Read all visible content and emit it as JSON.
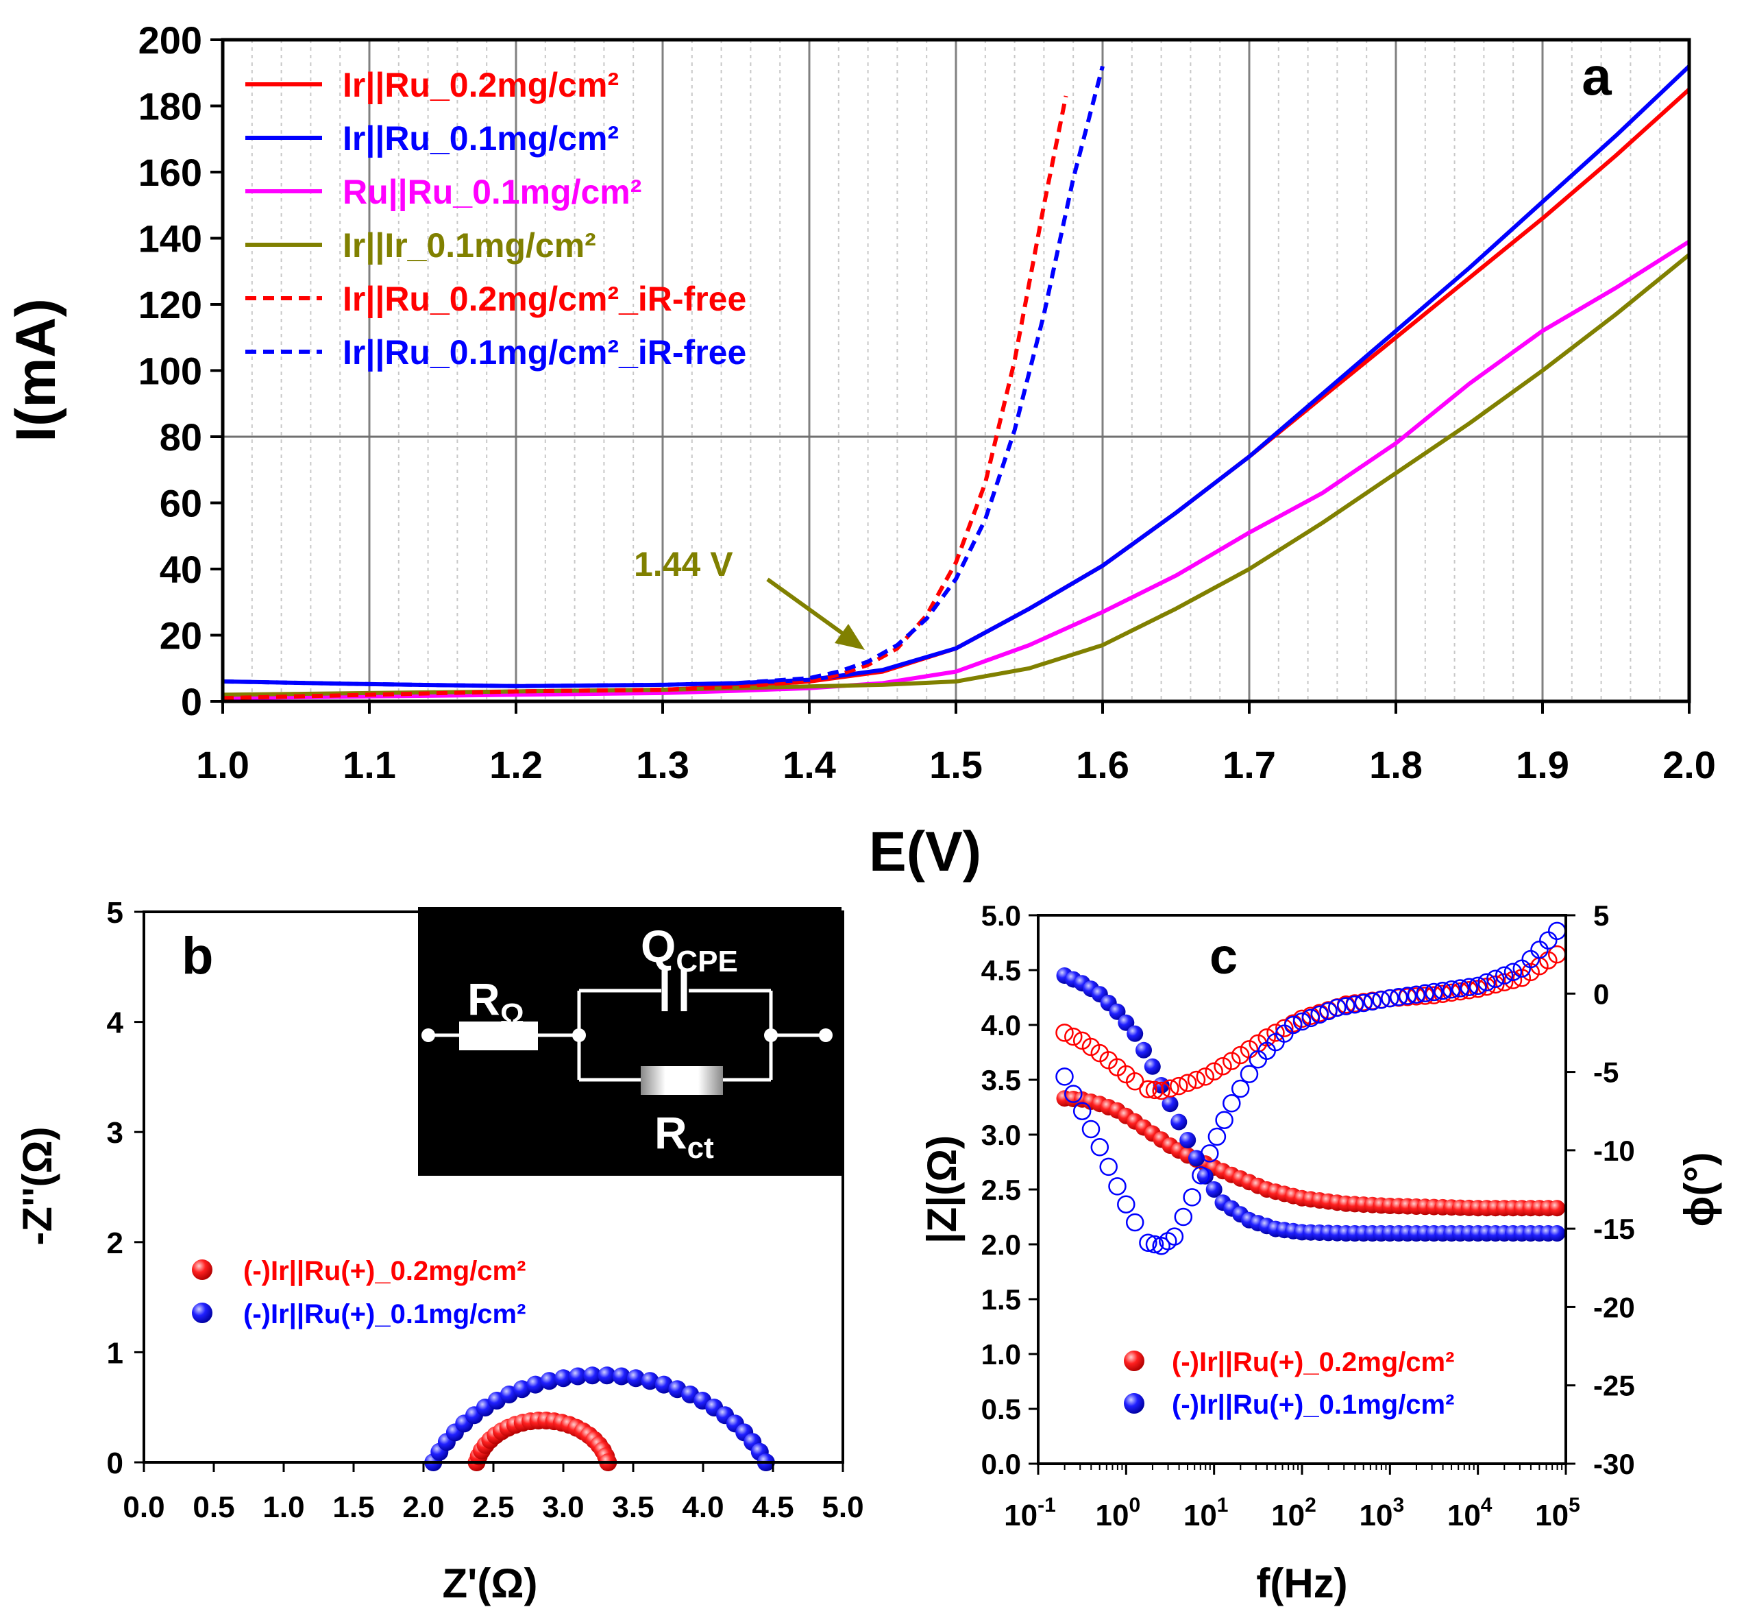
{
  "chart_data": [
    {
      "panel": "a",
      "type": "line",
      "panel_label": "a",
      "xlabel": "E(V)",
      "ylabel": "I(mA)",
      "xlim": [
        1.0,
        2.0
      ],
      "ylim": [
        0,
        200
      ],
      "xticks": [
        "1.0",
        "1.1",
        "1.2",
        "1.3",
        "1.4",
        "1.5",
        "1.6",
        "1.7",
        "1.8",
        "1.9",
        "2.0"
      ],
      "yticks": [
        "0",
        "20",
        "40",
        "60",
        "80",
        "100",
        "120",
        "140",
        "160",
        "180",
        "200"
      ],
      "grid": "vertical major + minor dotted, horizontal line at 80",
      "reference_line_y": 80,
      "legend_position": "top-left",
      "annotation": {
        "text": "1.44 V",
        "x": 1.44,
        "y": 17,
        "color": "#808000"
      },
      "series": [
        {
          "name": "Ir||Ru_0.2mg/cm²",
          "color": "#ff0000",
          "dash": false,
          "x": [
            1.0,
            1.1,
            1.2,
            1.3,
            1.35,
            1.4,
            1.45,
            1.5,
            1.55,
            1.6,
            1.65,
            1.7,
            1.75,
            1.8,
            1.85,
            1.9,
            1.95,
            2.0
          ],
          "y": [
            1,
            2,
            3,
            3.5,
            4.5,
            6,
            9,
            16,
            28,
            41,
            57,
            74,
            92,
            110,
            128,
            146,
            165,
            185
          ]
        },
        {
          "name": "Ir||Ru_0.1mg/cm²",
          "color": "#0000ff",
          "dash": false,
          "x": [
            1.0,
            1.1,
            1.2,
            1.3,
            1.35,
            1.4,
            1.45,
            1.5,
            1.55,
            1.6,
            1.65,
            1.7,
            1.75,
            1.8,
            1.85,
            1.9,
            1.95,
            2.0
          ],
          "y": [
            6,
            5.2,
            4.6,
            5,
            5.5,
            6.5,
            9.5,
            16,
            28,
            41,
            57,
            74,
            93,
            112,
            131,
            151,
            171,
            192
          ]
        },
        {
          "name": "Ru||Ru_0.1mg/cm²",
          "color": "#ff00ff",
          "dash": false,
          "x": [
            1.0,
            1.1,
            1.2,
            1.3,
            1.35,
            1.4,
            1.45,
            1.5,
            1.55,
            1.6,
            1.65,
            1.7,
            1.75,
            1.8,
            1.85,
            1.9,
            1.95,
            2.0
          ],
          "y": [
            1,
            1.5,
            2,
            2.5,
            3.2,
            4,
            5.5,
            9,
            17,
            27,
            38,
            51,
            63,
            78,
            96,
            112,
            125,
            139
          ]
        },
        {
          "name": "Ir||Ir_0.1mg/cm²",
          "color": "#808000",
          "dash": false,
          "x": [
            1.0,
            1.1,
            1.2,
            1.3,
            1.35,
            1.4,
            1.45,
            1.5,
            1.55,
            1.6,
            1.65,
            1.7,
            1.75,
            1.8,
            1.85,
            1.9,
            1.95,
            2.0
          ],
          "y": [
            2,
            2.5,
            3,
            3.5,
            4,
            4.5,
            5,
            6,
            10,
            17,
            28,
            40,
            54,
            69,
            84,
            100,
            117,
            135
          ]
        },
        {
          "name": "Ir||Ru_0.2mg/cm²_iR-free",
          "color": "#ff0000",
          "dash": true,
          "x": [
            1.0,
            1.1,
            1.2,
            1.3,
            1.35,
            1.4,
            1.42,
            1.44,
            1.46,
            1.48,
            1.5,
            1.52,
            1.54,
            1.56,
            1.575
          ],
          "y": [
            1,
            2,
            3,
            3.5,
            4.5,
            6,
            8,
            11,
            16,
            26,
            42,
            66,
            103,
            150,
            183
          ]
        },
        {
          "name": "Ir||Ru_0.1mg/cm²_iR-free",
          "color": "#0000ff",
          "dash": true,
          "x": [
            1.0,
            1.1,
            1.2,
            1.3,
            1.35,
            1.4,
            1.42,
            1.44,
            1.46,
            1.48,
            1.5,
            1.52,
            1.54,
            1.56,
            1.58,
            1.6
          ],
          "y": [
            6,
            5.2,
            4.6,
            5,
            5.5,
            7,
            9,
            12,
            17,
            25,
            37,
            55,
            82,
            117,
            158,
            192
          ]
        }
      ]
    },
    {
      "panel": "b",
      "type": "scatter",
      "panel_label": "b",
      "xlabel": "Z'(Ω)",
      "ylabel": "-Z''(Ω)",
      "xlim": [
        0,
        5
      ],
      "ylim": [
        0,
        5
      ],
      "xticks": [
        "0.0",
        "0.5",
        "1.0",
        "1.5",
        "2.0",
        "2.5",
        "3.0",
        "3.5",
        "4.0",
        "4.5",
        "5.0"
      ],
      "yticks": [
        "0",
        "1",
        "2",
        "3",
        "4",
        "5"
      ],
      "legend_position": "center-left",
      "inset": {
        "labels": [
          "R",
          "Ω",
          "Q",
          "CPE",
          "R",
          "ct"
        ]
      },
      "series": [
        {
          "name": "(-)Ir||Ru(+)_0.2mg/cm²",
          "color": "#ff0000",
          "r0": 2.38,
          "r1": 3.32,
          "center_y": -0.1,
          "count": 24
        },
        {
          "name": "(-)Ir||Ru(+)_0.1mg/cm²",
          "color": "#0000ff",
          "r0": 2.07,
          "r1": 4.45,
          "center_y": -0.5,
          "count": 30
        }
      ]
    },
    {
      "panel": "c",
      "type": "scatter",
      "panel_label": "c",
      "xlabel": "f(Hz)",
      "ylabel": "|Z|(Ω)",
      "y2label": "ϕ(°)",
      "x_scale": "log",
      "xlim": [
        0.1,
        100000
      ],
      "ylim": [
        0,
        5
      ],
      "y2lim": [
        -30,
        5
      ],
      "xticks": [
        {
          "base": "10",
          "exp": "-1"
        },
        {
          "base": "10",
          "exp": "0"
        },
        {
          "base": "10",
          "exp": "1"
        },
        {
          "base": "10",
          "exp": "2"
        },
        {
          "base": "10",
          "exp": "3"
        },
        {
          "base": "10",
          "exp": "4"
        },
        {
          "base": "10",
          "exp": "5"
        }
      ],
      "yticks": [
        "0.0",
        "0.5",
        "1.0",
        "1.5",
        "2.0",
        "2.5",
        "3.0",
        "3.5",
        "4.0",
        "4.5",
        "5.0"
      ],
      "y2ticks": [
        "5",
        "0",
        "-5",
        "-10",
        "-15",
        "-20",
        "-25",
        "-30"
      ],
      "legend_position": "bottom-center",
      "series": [
        {
          "name": "(-)Ir||Ru(+)_0.2mg/cm²",
          "color": "#ff0000",
          "kind": "|Z|",
          "filled": true,
          "logf": [
            -0.7,
            -0.5,
            -0.3,
            -0.1,
            0.1,
            0.3,
            0.5,
            0.7,
            1.0,
            1.3,
            1.6,
            2.0,
            2.5,
            3.0,
            4.0,
            4.9
          ],
          "y": [
            3.33,
            3.32,
            3.28,
            3.22,
            3.12,
            3.01,
            2.9,
            2.81,
            2.7,
            2.6,
            2.5,
            2.42,
            2.37,
            2.35,
            2.33,
            2.33
          ]
        },
        {
          "name": "(-)Ir||Ru(+)_0.1mg/cm²",
          "color": "#0000ff",
          "kind": "|Z|",
          "filled": true,
          "logf": [
            -0.7,
            -0.5,
            -0.3,
            -0.1,
            0.1,
            0.3,
            0.5,
            0.7,
            0.9,
            1.1,
            1.4,
            1.7,
            2.0,
            2.5,
            3.0,
            4.0,
            4.9
          ],
          "y": [
            4.45,
            4.38,
            4.28,
            4.12,
            3.92,
            3.62,
            3.28,
            2.95,
            2.62,
            2.38,
            2.22,
            2.14,
            2.11,
            2.1,
            2.1,
            2.1,
            2.1
          ]
        },
        {
          "name": "(-)Ir||Ru(+)_0.2mg/cm²",
          "color": "#ff0000",
          "kind": "phase",
          "filled": false,
          "logf": [
            -0.7,
            -0.5,
            -0.3,
            -0.1,
            0.1,
            0.25,
            0.4,
            0.6,
            0.9,
            1.2,
            1.6,
            2.0,
            2.5,
            3.0,
            3.5,
            4.0,
            4.5,
            4.9
          ],
          "phase": [
            -2.5,
            -3.0,
            -3.8,
            -4.7,
            -5.6,
            -6.1,
            -6.2,
            -5.9,
            -5.3,
            -4.3,
            -2.8,
            -1.6,
            -0.7,
            -0.3,
            -0.1,
            0.3,
            1.0,
            2.5
          ]
        },
        {
          "name": "(-)Ir||Ru(+)_0.1mg/cm²",
          "color": "#0000ff",
          "kind": "phase",
          "filled": false,
          "logf": [
            -0.7,
            -0.5,
            -0.3,
            -0.1,
            0.1,
            0.25,
            0.4,
            0.55,
            0.75,
            0.95,
            1.2,
            1.5,
            1.9,
            2.4,
            3.0,
            3.5,
            4.0,
            4.5,
            4.9
          ],
          "phase": [
            -5.3,
            -7.5,
            -9.8,
            -12.3,
            -14.6,
            -15.9,
            -16.1,
            -15.5,
            -13.0,
            -10.2,
            -7.0,
            -4.2,
            -2.0,
            -0.9,
            -0.3,
            0.1,
            0.5,
            1.6,
            4.0
          ]
        }
      ]
    }
  ]
}
